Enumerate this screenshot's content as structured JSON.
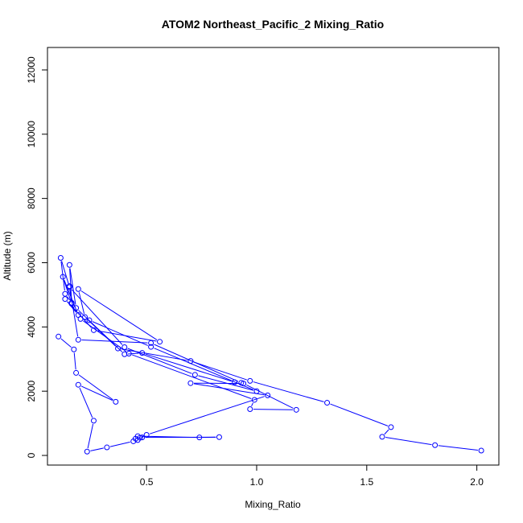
{
  "chart_data": {
    "type": "line",
    "title": "ATOM2 Northeast_Pacific_2 Mixing_Ratio",
    "xlabel": "Mixing_Ratio",
    "ylabel": "Altitude (m)",
    "xlim": [
      0.05,
      2.1
    ],
    "ylim": [
      -300,
      12700
    ],
    "xticks": [
      0.5,
      1.0,
      1.5,
      2.0
    ],
    "xtick_labels": [
      "0.5",
      "1.0",
      "1.5",
      "2.0"
    ],
    "yticks": [
      0,
      2000,
      4000,
      6000,
      8000,
      10000,
      12000
    ],
    "ytick_labels": [
      "0",
      "2000",
      "4000",
      "6000",
      "8000",
      "10000",
      "12000"
    ],
    "grid": false,
    "legend": "none",
    "series": [
      {
        "color": "#0000ff",
        "points": [
          [
            2.02,
            150
          ],
          [
            1.81,
            320
          ],
          [
            1.57,
            580
          ],
          [
            1.61,
            880
          ],
          [
            1.32,
            1640
          ],
          [
            0.97,
            2320
          ],
          [
            0.7,
            2940
          ],
          [
            0.37,
            3330
          ],
          [
            0.22,
            4310
          ],
          [
            0.19,
            5180
          ],
          [
            0.56,
            3540
          ],
          [
            0.26,
            3900
          ],
          [
            0.13,
            4870
          ],
          [
            0.19,
            4370
          ],
          [
            0.12,
            5560
          ],
          [
            0.16,
            4720
          ],
          [
            0.15,
            5270
          ],
          [
            0.19,
            3600
          ],
          [
            0.52,
            3500
          ],
          [
            0.93,
            2260
          ],
          [
            0.9,
            2280
          ],
          [
            0.48,
            3190
          ],
          [
            0.4,
            3150
          ],
          [
            0.18,
            4590
          ],
          [
            0.15,
            5930
          ],
          [
            0.16,
            4750
          ],
          [
            0.13,
            5030
          ],
          [
            0.11,
            6150
          ],
          [
            0.15,
            5240
          ],
          [
            0.4,
            3370
          ],
          [
            0.72,
            2510
          ],
          [
            1.0,
            2000
          ],
          [
            0.52,
            3380
          ],
          [
            0.24,
            4210
          ],
          [
            0.2,
            4250
          ],
          [
            0.42,
            3170
          ],
          [
            0.99,
            1730
          ],
          [
            0.97,
            1440
          ],
          [
            1.18,
            1420
          ],
          [
            0.94,
            2240
          ],
          [
            0.7,
            2250
          ],
          [
            1.05,
            1870
          ],
          [
            0.5,
            640
          ],
          [
            0.46,
            480
          ],
          [
            0.47,
            550
          ],
          [
            0.48,
            560
          ],
          [
            0.83,
            570
          ],
          [
            0.74,
            560
          ],
          [
            0.46,
            600
          ],
          [
            0.45,
            520
          ],
          [
            0.44,
            440
          ],
          [
            0.32,
            250
          ],
          [
            0.23,
            120
          ],
          [
            0.26,
            1080
          ],
          [
            0.19,
            2200
          ],
          [
            0.36,
            1670
          ],
          [
            0.18,
            2570
          ],
          [
            0.17,
            3300
          ],
          [
            0.1,
            3700
          ]
        ]
      }
    ]
  }
}
